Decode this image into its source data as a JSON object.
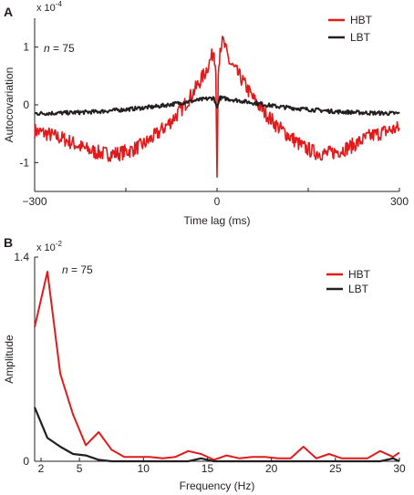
{
  "chart_data": [
    {
      "panel": "A",
      "type": "line",
      "multiplier": "x 10",
      "multiplier_exp": "-4",
      "annotation_italic": "n",
      "annotation_rest": " = 75",
      "xlabel": "Time lag (ms)",
      "ylabel": "Autocovariation",
      "xlim": [
        -300,
        300
      ],
      "ylim": [
        -1.5,
        1.5
      ],
      "xticks": [
        "-300",
        "0",
        "300"
      ],
      "yticks": [
        "-1",
        "0",
        "1"
      ],
      "legend_position": "top-right",
      "series": [
        {
          "name": "HBT",
          "color": "#e31a1c",
          "x": [
            -300,
            -280,
            -250,
            -220,
            -200,
            -180,
            -160,
            -140,
            -120,
            -100,
            -80,
            -60,
            -40,
            -20,
            -10,
            -5,
            -2,
            0,
            2,
            5,
            10,
            20,
            40,
            60,
            80,
            100,
            120,
            140,
            160,
            180,
            200,
            220,
            250,
            280,
            300
          ],
          "y": [
            -0.45,
            -0.5,
            -0.6,
            -0.75,
            -0.82,
            -0.85,
            -0.84,
            -0.78,
            -0.68,
            -0.52,
            -0.33,
            -0.1,
            0.2,
            0.55,
            0.8,
            0.95,
            0.55,
            -1.25,
            0.5,
            1.0,
            1.1,
            0.75,
            0.45,
            0.1,
            -0.15,
            -0.38,
            -0.55,
            -0.72,
            -0.82,
            -0.85,
            -0.8,
            -0.72,
            -0.55,
            -0.45,
            -0.4
          ]
        },
        {
          "name": "LBT",
          "color": "#231f20",
          "x": [
            -300,
            -250,
            -200,
            -150,
            -100,
            -50,
            -20,
            -5,
            0,
            5,
            20,
            50,
            100,
            150,
            200,
            250,
            300
          ],
          "y": [
            -0.15,
            -0.14,
            -0.12,
            -0.08,
            -0.03,
            0.05,
            0.1,
            0.12,
            -0.05,
            0.12,
            0.1,
            0.05,
            -0.03,
            -0.08,
            -0.12,
            -0.14,
            -0.15
          ]
        }
      ]
    },
    {
      "panel": "B",
      "type": "line",
      "multiplier": "x 10",
      "multiplier_exp": "-2",
      "annotation_italic": "n",
      "annotation_rest": " = 75",
      "xlabel": "Frequency (Hz)",
      "ylabel": "Amplitude",
      "xlim": [
        1.5,
        30
      ],
      "ylim": [
        0,
        1.4
      ],
      "xticks": [
        "2",
        "5",
        "10",
        "15",
        "20",
        "25",
        "30"
      ],
      "yticks": [
        "0",
        "1.4"
      ],
      "legend_position": "top-right",
      "series": [
        {
          "name": "HBT",
          "color": "#e31a1c",
          "x": [
            1.5,
            2.5,
            3.5,
            4.5,
            5.5,
            6.5,
            7.5,
            8.5,
            9.5,
            10.5,
            11.5,
            12.5,
            13.5,
            14.5,
            15.5,
            16.5,
            17.5,
            18.5,
            19.5,
            20.5,
            21.5,
            22.5,
            23.5,
            24.5,
            25.5,
            26.5,
            27.5,
            28.5,
            29.5,
            30
          ],
          "y": [
            0.92,
            1.3,
            0.6,
            0.32,
            0.11,
            0.2,
            0.08,
            0.03,
            0.03,
            0.03,
            0.02,
            0.03,
            0.07,
            0.05,
            0.01,
            0.04,
            0.02,
            0.03,
            0.03,
            0.02,
            0.02,
            0.1,
            0.02,
            0.05,
            0.02,
            0.02,
            0.02,
            0.07,
            0.03,
            0.06
          ]
        },
        {
          "name": "LBT",
          "color": "#231f20",
          "x": [
            1.5,
            2.5,
            3.5,
            4.5,
            5.5,
            6.5,
            7.5,
            8.5,
            9.5,
            10.5,
            11.5,
            12.5,
            13.5,
            14.5,
            15.5,
            16.5,
            17.5,
            18.5,
            19.5,
            20.5,
            21.5,
            22.5,
            23.5,
            24.5,
            25.5,
            26.5,
            27.5,
            28.5,
            29.5,
            30
          ],
          "y": [
            0.37,
            0.16,
            0.1,
            0.05,
            0.04,
            0.01,
            0.0,
            0.0,
            0.0,
            0.0,
            0.0,
            0.0,
            0.0,
            0.02,
            0.0,
            0.0,
            0.0,
            0.0,
            0.0,
            0.0,
            0.0,
            0.0,
            0.0,
            0.0,
            0.0,
            0.0,
            0.0,
            0.0,
            0.02,
            0.0
          ]
        }
      ]
    }
  ]
}
